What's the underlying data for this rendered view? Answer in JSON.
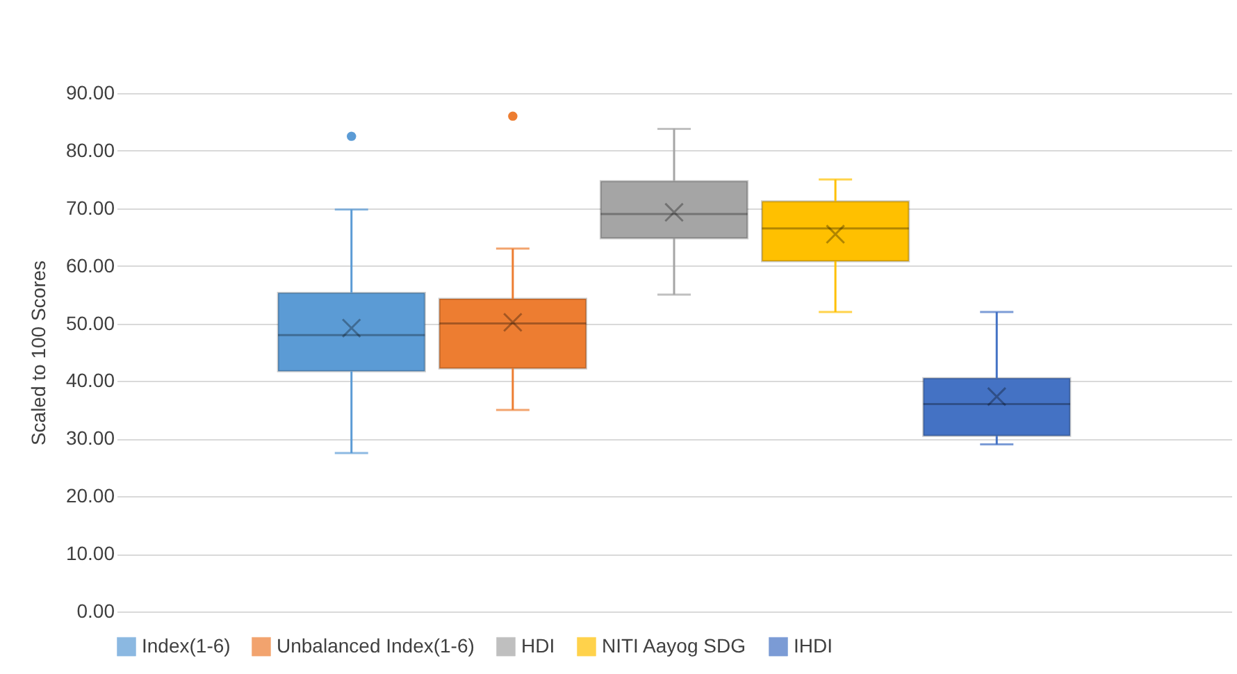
{
  "chart_data": {
    "type": "box",
    "ylabel": "Scaled to 100 Scores",
    "categories": [
      null
    ],
    "ylim": [
      0,
      90
    ],
    "yticks": [
      {
        "value": 0,
        "label": "0.00"
      },
      {
        "value": 10,
        "label": "10.00"
      },
      {
        "value": 20,
        "label": "20.00"
      },
      {
        "value": 30,
        "label": "30.00"
      },
      {
        "value": 40,
        "label": "40.00"
      },
      {
        "value": 50,
        "label": "50.00"
      },
      {
        "value": 60,
        "label": "60.00"
      },
      {
        "value": 70,
        "label": "70.00"
      },
      {
        "value": 80,
        "label": "80.00"
      },
      {
        "value": 90,
        "label": "90.00"
      }
    ],
    "grid": "y",
    "legend": "bottom",
    "series": [
      {
        "name": "Index(1-6)",
        "color": "#5b9bd5",
        "boxes": [
          {
            "low": 27.5,
            "q1": 41.7,
            "median": 48,
            "q3": 55.3,
            "high": 69.8,
            "mean": 49.2,
            "outliers": [
              82.5
            ]
          }
        ]
      },
      {
        "name": "Unbalanced Index(1-6)",
        "color": "#ed7d31",
        "boxes": [
          {
            "low": 35,
            "q1": 42.2,
            "median": 50,
            "q3": 54.3,
            "high": 63,
            "mean": 50.2,
            "outliers": [
              86
            ]
          }
        ]
      },
      {
        "name": "HDI",
        "color": "#a5a5a5",
        "boxes": [
          {
            "low": 55,
            "q1": 64.8,
            "median": 69,
            "q3": 74.7,
            "high": 83.8,
            "mean": 69.3
          }
        ]
      },
      {
        "name": "NITI Aayog SDG",
        "color": "#ffc000",
        "boxes": [
          {
            "low": 52,
            "q1": 60.8,
            "median": 66.5,
            "q3": 71.2,
            "high": 75,
            "mean": 65.5
          }
        ]
      },
      {
        "name": "IHDI",
        "color": "#4472c4",
        "boxes": [
          {
            "low": 29,
            "q1": 30.5,
            "median": 36,
            "q3": 40.5,
            "high": 52,
            "mean": 37.3
          }
        ]
      }
    ]
  }
}
